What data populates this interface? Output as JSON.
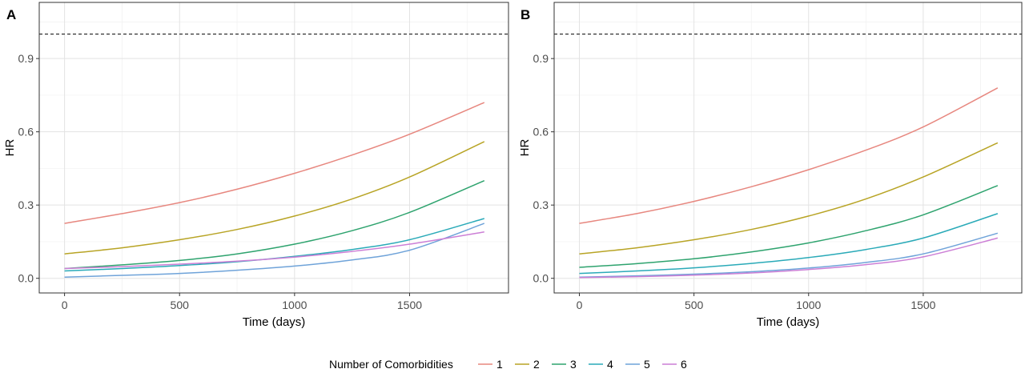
{
  "chart_data": [
    {
      "type": "line",
      "panel_label": "A",
      "xlabel": "Time (days)",
      "ylabel": "HR",
      "xlim": [
        -110,
        1930
      ],
      "ylim": [
        -0.06,
        1.13
      ],
      "xticks": [
        "0",
        "500",
        "1000",
        "1500"
      ],
      "yticks": [
        "0.0",
        "0.3",
        "0.6",
        "0.9"
      ],
      "x_minor_ticks": [
        250,
        750,
        1250,
        1750
      ],
      "y_minor_ticks": [
        0.15,
        0.45,
        0.75,
        1.05
      ],
      "grid": true,
      "reference_line": {
        "y": 1.0,
        "style": "dashed"
      },
      "series": [
        {
          "name": "1",
          "color": "#E7877F",
          "x": [
            0,
            250,
            500,
            750,
            1000,
            1250,
            1500,
            1825
          ],
          "values": [
            0.225,
            0.265,
            0.31,
            0.365,
            0.43,
            0.505,
            0.59,
            0.72
          ]
        },
        {
          "name": "2",
          "color": "#B8A425",
          "x": [
            0,
            250,
            500,
            750,
            1000,
            1250,
            1500,
            1825
          ],
          "values": [
            0.1,
            0.125,
            0.158,
            0.2,
            0.255,
            0.325,
            0.415,
            0.56
          ]
        },
        {
          "name": "3",
          "color": "#2EA36E",
          "x": [
            0,
            250,
            500,
            750,
            1000,
            1250,
            1500,
            1825
          ],
          "values": [
            0.04,
            0.055,
            0.073,
            0.1,
            0.14,
            0.195,
            0.27,
            0.4
          ]
        },
        {
          "name": "4",
          "color": "#2AAAB8",
          "x": [
            0,
            250,
            500,
            750,
            1000,
            1250,
            1500,
            1825
          ],
          "values": [
            0.03,
            0.04,
            0.052,
            0.068,
            0.09,
            0.118,
            0.158,
            0.245
          ]
        },
        {
          "name": "5",
          "color": "#6FA3D9",
          "x": [
            0,
            250,
            500,
            750,
            1000,
            1250,
            1500,
            1825
          ],
          "values": [
            0.005,
            0.012,
            0.02,
            0.033,
            0.05,
            0.075,
            0.115,
            0.225
          ]
        },
        {
          "name": "6",
          "color": "#CC7FD6",
          "x": [
            0,
            250,
            500,
            750,
            1000,
            1250,
            1500,
            1825
          ],
          "values": [
            0.04,
            0.048,
            0.058,
            0.07,
            0.087,
            0.11,
            0.14,
            0.19
          ]
        }
      ]
    },
    {
      "type": "line",
      "panel_label": "B",
      "xlabel": "Time (days)",
      "ylabel": "HR",
      "xlim": [
        -110,
        1930
      ],
      "ylim": [
        -0.06,
        1.13
      ],
      "xticks": [
        "0",
        "500",
        "1000",
        "1500"
      ],
      "yticks": [
        "0.0",
        "0.3",
        "0.6",
        "0.9"
      ],
      "x_minor_ticks": [
        250,
        750,
        1250,
        1750
      ],
      "y_minor_ticks": [
        0.15,
        0.45,
        0.75,
        1.05
      ],
      "grid": true,
      "reference_line": {
        "y": 1.0,
        "style": "dashed"
      },
      "series": [
        {
          "name": "1",
          "color": "#E7877F",
          "x": [
            0,
            250,
            500,
            750,
            1000,
            1250,
            1500,
            1825
          ],
          "values": [
            0.225,
            0.265,
            0.315,
            0.375,
            0.445,
            0.525,
            0.62,
            0.78
          ]
        },
        {
          "name": "2",
          "color": "#B8A425",
          "x": [
            0,
            250,
            500,
            750,
            1000,
            1250,
            1500,
            1825
          ],
          "values": [
            0.1,
            0.125,
            0.158,
            0.2,
            0.255,
            0.325,
            0.415,
            0.555
          ]
        },
        {
          "name": "3",
          "color": "#2EA36E",
          "x": [
            0,
            250,
            500,
            750,
            1000,
            1250,
            1500,
            1825
          ],
          "values": [
            0.045,
            0.06,
            0.08,
            0.108,
            0.145,
            0.195,
            0.26,
            0.38
          ]
        },
        {
          "name": "4",
          "color": "#2AAAB8",
          "x": [
            0,
            250,
            500,
            750,
            1000,
            1250,
            1500,
            1825
          ],
          "values": [
            0.02,
            0.03,
            0.043,
            0.061,
            0.085,
            0.118,
            0.165,
            0.265
          ]
        },
        {
          "name": "5",
          "color": "#6FA3D9",
          "x": [
            0,
            250,
            500,
            750,
            1000,
            1250,
            1500,
            1825
          ],
          "values": [
            0.005,
            0.01,
            0.017,
            0.027,
            0.042,
            0.065,
            0.1,
            0.185
          ]
        },
        {
          "name": "6",
          "color": "#CC7FD6",
          "x": [
            0,
            250,
            500,
            750,
            1000,
            1250,
            1500,
            1825
          ],
          "values": [
            0.003,
            0.007,
            0.013,
            0.022,
            0.036,
            0.056,
            0.088,
            0.165
          ]
        }
      ]
    }
  ],
  "legend": {
    "title": "Number of Comorbidities",
    "placement": "bottom",
    "items": [
      {
        "label": "1",
        "color": "#E7877F"
      },
      {
        "label": "2",
        "color": "#B8A425"
      },
      {
        "label": "3",
        "color": "#2EA36E"
      },
      {
        "label": "4",
        "color": "#2AAAB8"
      },
      {
        "label": "5",
        "color": "#6FA3D9"
      },
      {
        "label": "6",
        "color": "#CC7FD6"
      }
    ]
  }
}
